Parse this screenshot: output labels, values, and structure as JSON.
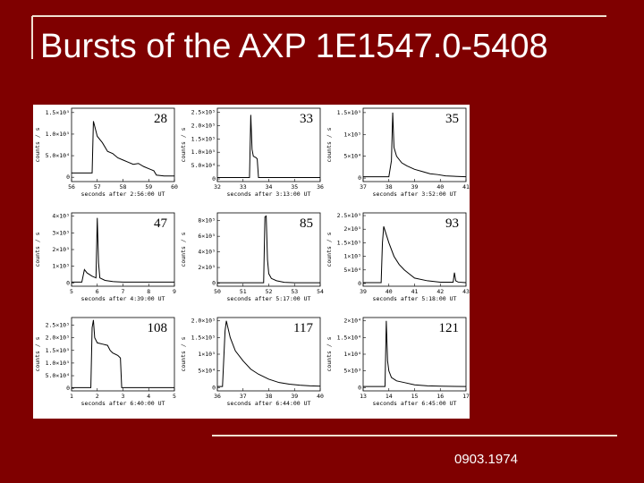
{
  "title": "Bursts of the AXP 1E1547.0-5408",
  "footer": "0903.1974",
  "chart_data": [
    {
      "type": "line",
      "title": "28",
      "xlabel": "seconds after 2:56:00 UT",
      "ylabel": "counts / s",
      "color": "#000000",
      "x": [
        56,
        56.5,
        56.8,
        56.85,
        57,
        57.2,
        57.4,
        57.6,
        57.8,
        58,
        58.2,
        58.4,
        58.6,
        58.8,
        59,
        59.2,
        59.3,
        59.6,
        60
      ],
      "values": [
        10000,
        10000,
        10000,
        130000,
        95000,
        80000,
        60000,
        55000,
        45000,
        40000,
        35000,
        30000,
        32000,
        25000,
        20000,
        15000,
        5000,
        3000,
        3000
      ],
      "xlim": [
        56,
        60
      ],
      "xticks": [
        56,
        57,
        58,
        59,
        60
      ],
      "ylim": [
        -10000,
        160000
      ],
      "yticks": [
        0,
        {
          "value": 50000,
          "label": "5.0×10⁴"
        },
        {
          "value": 100000,
          "label": "1.0×10⁵"
        },
        {
          "value": 150000,
          "label": "1.5×10⁵"
        }
      ]
    },
    {
      "type": "line",
      "title": "33",
      "xlabel": "seconds after 3:13:00 UT",
      "ylabel": "counts / s",
      "color": "#000000",
      "x": [
        32,
        32.5,
        33,
        33.25,
        33.3,
        33.35,
        33.4,
        33.5,
        33.55,
        33.6,
        34,
        35,
        36
      ],
      "values": [
        5000,
        5000,
        5000,
        5000,
        240000,
        110000,
        85000,
        80000,
        75000,
        5000,
        5000,
        5000,
        5000
      ],
      "xlim": [
        32,
        36
      ],
      "xticks": [
        32,
        33,
        34,
        35,
        36
      ],
      "ylim": [
        -10000,
        265000
      ],
      "yticks": [
        0,
        {
          "value": 50000,
          "label": "5.0×10⁴"
        },
        {
          "value": 100000,
          "label": "1.0×10⁵"
        },
        {
          "value": 150000,
          "label": "1.5×10⁵"
        },
        {
          "value": 200000,
          "label": "2.0×10⁵"
        },
        {
          "value": 250000,
          "label": "2.5×10⁵"
        }
      ]
    },
    {
      "type": "line",
      "title": "35",
      "xlabel": "seconds after 3:52:00 UT",
      "ylabel": "counts / s",
      "color": "#000000",
      "x": [
        37,
        37.5,
        38,
        38.1,
        38.15,
        38.2,
        38.3,
        38.5,
        38.7,
        39,
        39.3,
        39.6,
        39.9,
        40.2,
        41
      ],
      "values": [
        3000,
        3000,
        3000,
        40000,
        150000,
        70000,
        50000,
        35000,
        28000,
        20000,
        15000,
        10000,
        8000,
        5000,
        3000
      ],
      "xlim": [
        37,
        41
      ],
      "xticks": [
        37,
        38,
        39,
        40,
        41
      ],
      "ylim": [
        -8000,
        160000
      ],
      "yticks": [
        0,
        {
          "value": 50000,
          "label": "5×10⁴"
        },
        {
          "value": 100000,
          "label": "1×10⁵"
        },
        {
          "value": 150000,
          "label": "1.5×10⁵"
        }
      ]
    },
    {
      "type": "line",
      "title": "47",
      "xlabel": "seconds after 4:39:00 UT",
      "ylabel": "counts / s",
      "color": "#000000",
      "x": [
        5,
        5.4,
        5.5,
        5.6,
        5.8,
        5.95,
        6.0,
        6.05,
        6.1,
        6.3,
        6.6,
        7,
        8,
        9
      ],
      "values": [
        5000,
        5000,
        80000,
        60000,
        40000,
        30000,
        390000,
        120000,
        30000,
        15000,
        8000,
        5000,
        5000,
        5000
      ],
      "xlim": [
        5,
        9
      ],
      "xticks": [
        5,
        6,
        7,
        8,
        9
      ],
      "ylim": [
        -20000,
        420000
      ],
      "yticks": [
        0,
        {
          "value": 100000,
          "label": "1×10⁵"
        },
        {
          "value": 200000,
          "label": "2×10⁵"
        },
        {
          "value": 300000,
          "label": "3×10⁵"
        },
        {
          "value": 400000,
          "label": "4×10⁵"
        }
      ]
    },
    {
      "type": "line",
      "title": "85",
      "xlabel": "seconds after 5:17:00 UT",
      "ylabel": "counts / s",
      "color": "#000000",
      "x": [
        50,
        51,
        51.8,
        51.85,
        51.9,
        51.95,
        52.0,
        52.1,
        52.3,
        52.6,
        53,
        54
      ],
      "values": [
        5000,
        5000,
        5000,
        850000,
        860000,
        300000,
        120000,
        60000,
        30000,
        10000,
        5000,
        5000
      ],
      "xlim": [
        50,
        54
      ],
      "xticks": [
        50,
        51,
        52,
        53,
        54
      ],
      "ylim": [
        -40000,
        900000
      ],
      "yticks": [
        0,
        {
          "value": 200000,
          "label": "2×10⁵"
        },
        {
          "value": 400000,
          "label": "4×10⁵"
        },
        {
          "value": 600000,
          "label": "6×10⁵"
        },
        {
          "value": 800000,
          "label": "8×10⁵"
        }
      ]
    },
    {
      "type": "line",
      "title": "93",
      "xlabel": "seconds after 5:18:00 UT",
      "ylabel": "counts / s",
      "color": "#000000",
      "x": [
        39,
        39.5,
        39.7,
        39.75,
        39.8,
        39.9,
        40,
        40.2,
        40.4,
        40.6,
        40.8,
        41,
        41.5,
        42,
        42.5,
        42.55,
        42.6,
        42.7,
        43
      ],
      "values": [
        3000,
        3000,
        3000,
        150000,
        210000,
        180000,
        150000,
        100000,
        70000,
        50000,
        35000,
        20000,
        10000,
        5000,
        5000,
        40000,
        10000,
        5000,
        3000
      ],
      "xlim": [
        39,
        43
      ],
      "xticks": [
        39,
        40,
        41,
        42,
        43
      ],
      "ylim": [
        -10000,
        260000
      ],
      "yticks": [
        0,
        {
          "value": 50000,
          "label": "5×10⁴"
        },
        {
          "value": 100000,
          "label": "1×10⁵"
        },
        {
          "value": 150000,
          "label": "1.5×10⁵"
        },
        {
          "value": 200000,
          "label": "2×10⁵"
        },
        {
          "value": 250000,
          "label": "2.5×10⁵"
        }
      ]
    },
    {
      "type": "line",
      "title": "108",
      "xlabel": "seconds after 6:40:00 UT",
      "ylabel": "counts / s",
      "color": "#000000",
      "x": [
        1,
        1.5,
        1.75,
        1.8,
        1.85,
        1.9,
        2,
        2.2,
        2.4,
        2.5,
        2.6,
        2.8,
        2.9,
        2.95,
        3,
        4,
        5
      ],
      "values": [
        3000,
        3000,
        3000,
        240000,
        270000,
        200000,
        180000,
        175000,
        170000,
        150000,
        140000,
        130000,
        120000,
        3000,
        3000,
        3000,
        3000
      ],
      "xlim": [
        1,
        5
      ],
      "xticks": [
        1,
        2,
        3,
        4,
        5
      ],
      "ylim": [
        -10000,
        280000
      ],
      "yticks": [
        0,
        {
          "value": 50000,
          "label": "5.0×10⁴"
        },
        {
          "value": 100000,
          "label": "1.0×10⁵"
        },
        {
          "value": 150000,
          "label": "1.5×10⁵"
        },
        {
          "value": 200000,
          "label": "2.0×10⁵"
        },
        {
          "value": 250000,
          "label": "2.5×10⁵"
        }
      ]
    },
    {
      "type": "line",
      "title": "117",
      "xlabel": "seconds after 6:44:00 UT",
      "ylabel": "counts / s",
      "color": "#000000",
      "x": [
        36,
        36.2,
        36.3,
        36.35,
        36.5,
        36.7,
        37,
        37.3,
        37.6,
        38,
        38.4,
        38.8,
        39.2,
        39.6,
        40
      ],
      "values": [
        3000,
        3000,
        170000,
        200000,
        150000,
        110000,
        80000,
        55000,
        40000,
        25000,
        15000,
        10000,
        7000,
        5000,
        4000
      ],
      "xlim": [
        36,
        40
      ],
      "xticks": [
        36,
        37,
        38,
        39,
        40
      ],
      "ylim": [
        -10000,
        210000
      ],
      "yticks": [
        0,
        {
          "value": 50000,
          "label": "5×10⁴"
        },
        {
          "value": 100000,
          "label": "1×10⁵"
        },
        {
          "value": 150000,
          "label": "1.5×10⁵"
        },
        {
          "value": 200000,
          "label": "2.0×10⁵"
        }
      ]
    },
    {
      "type": "line",
      "title": "121",
      "xlabel": "seconds after 6:45:00 UT",
      "ylabel": "counts / s",
      "color": "#000000",
      "x": [
        13,
        13.5,
        13.85,
        13.9,
        13.95,
        14,
        14.1,
        14.3,
        14.6,
        15,
        15.5,
        16,
        17
      ],
      "values": [
        300,
        300,
        300,
        20000,
        8000,
        5000,
        3000,
        2000,
        1500,
        800,
        500,
        400,
        300
      ],
      "xlim": [
        13,
        17
      ],
      "xticks": [
        13,
        14,
        15,
        16,
        17
      ],
      "ylim": [
        -1000,
        21000
      ],
      "yticks": [
        0,
        {
          "value": 5000,
          "label": "5×10³"
        },
        {
          "value": 10000,
          "label": "1×10⁴"
        },
        {
          "value": 15000,
          "label": "1.5×10⁴"
        },
        {
          "value": 20000,
          "label": "2×10⁴"
        }
      ]
    }
  ]
}
